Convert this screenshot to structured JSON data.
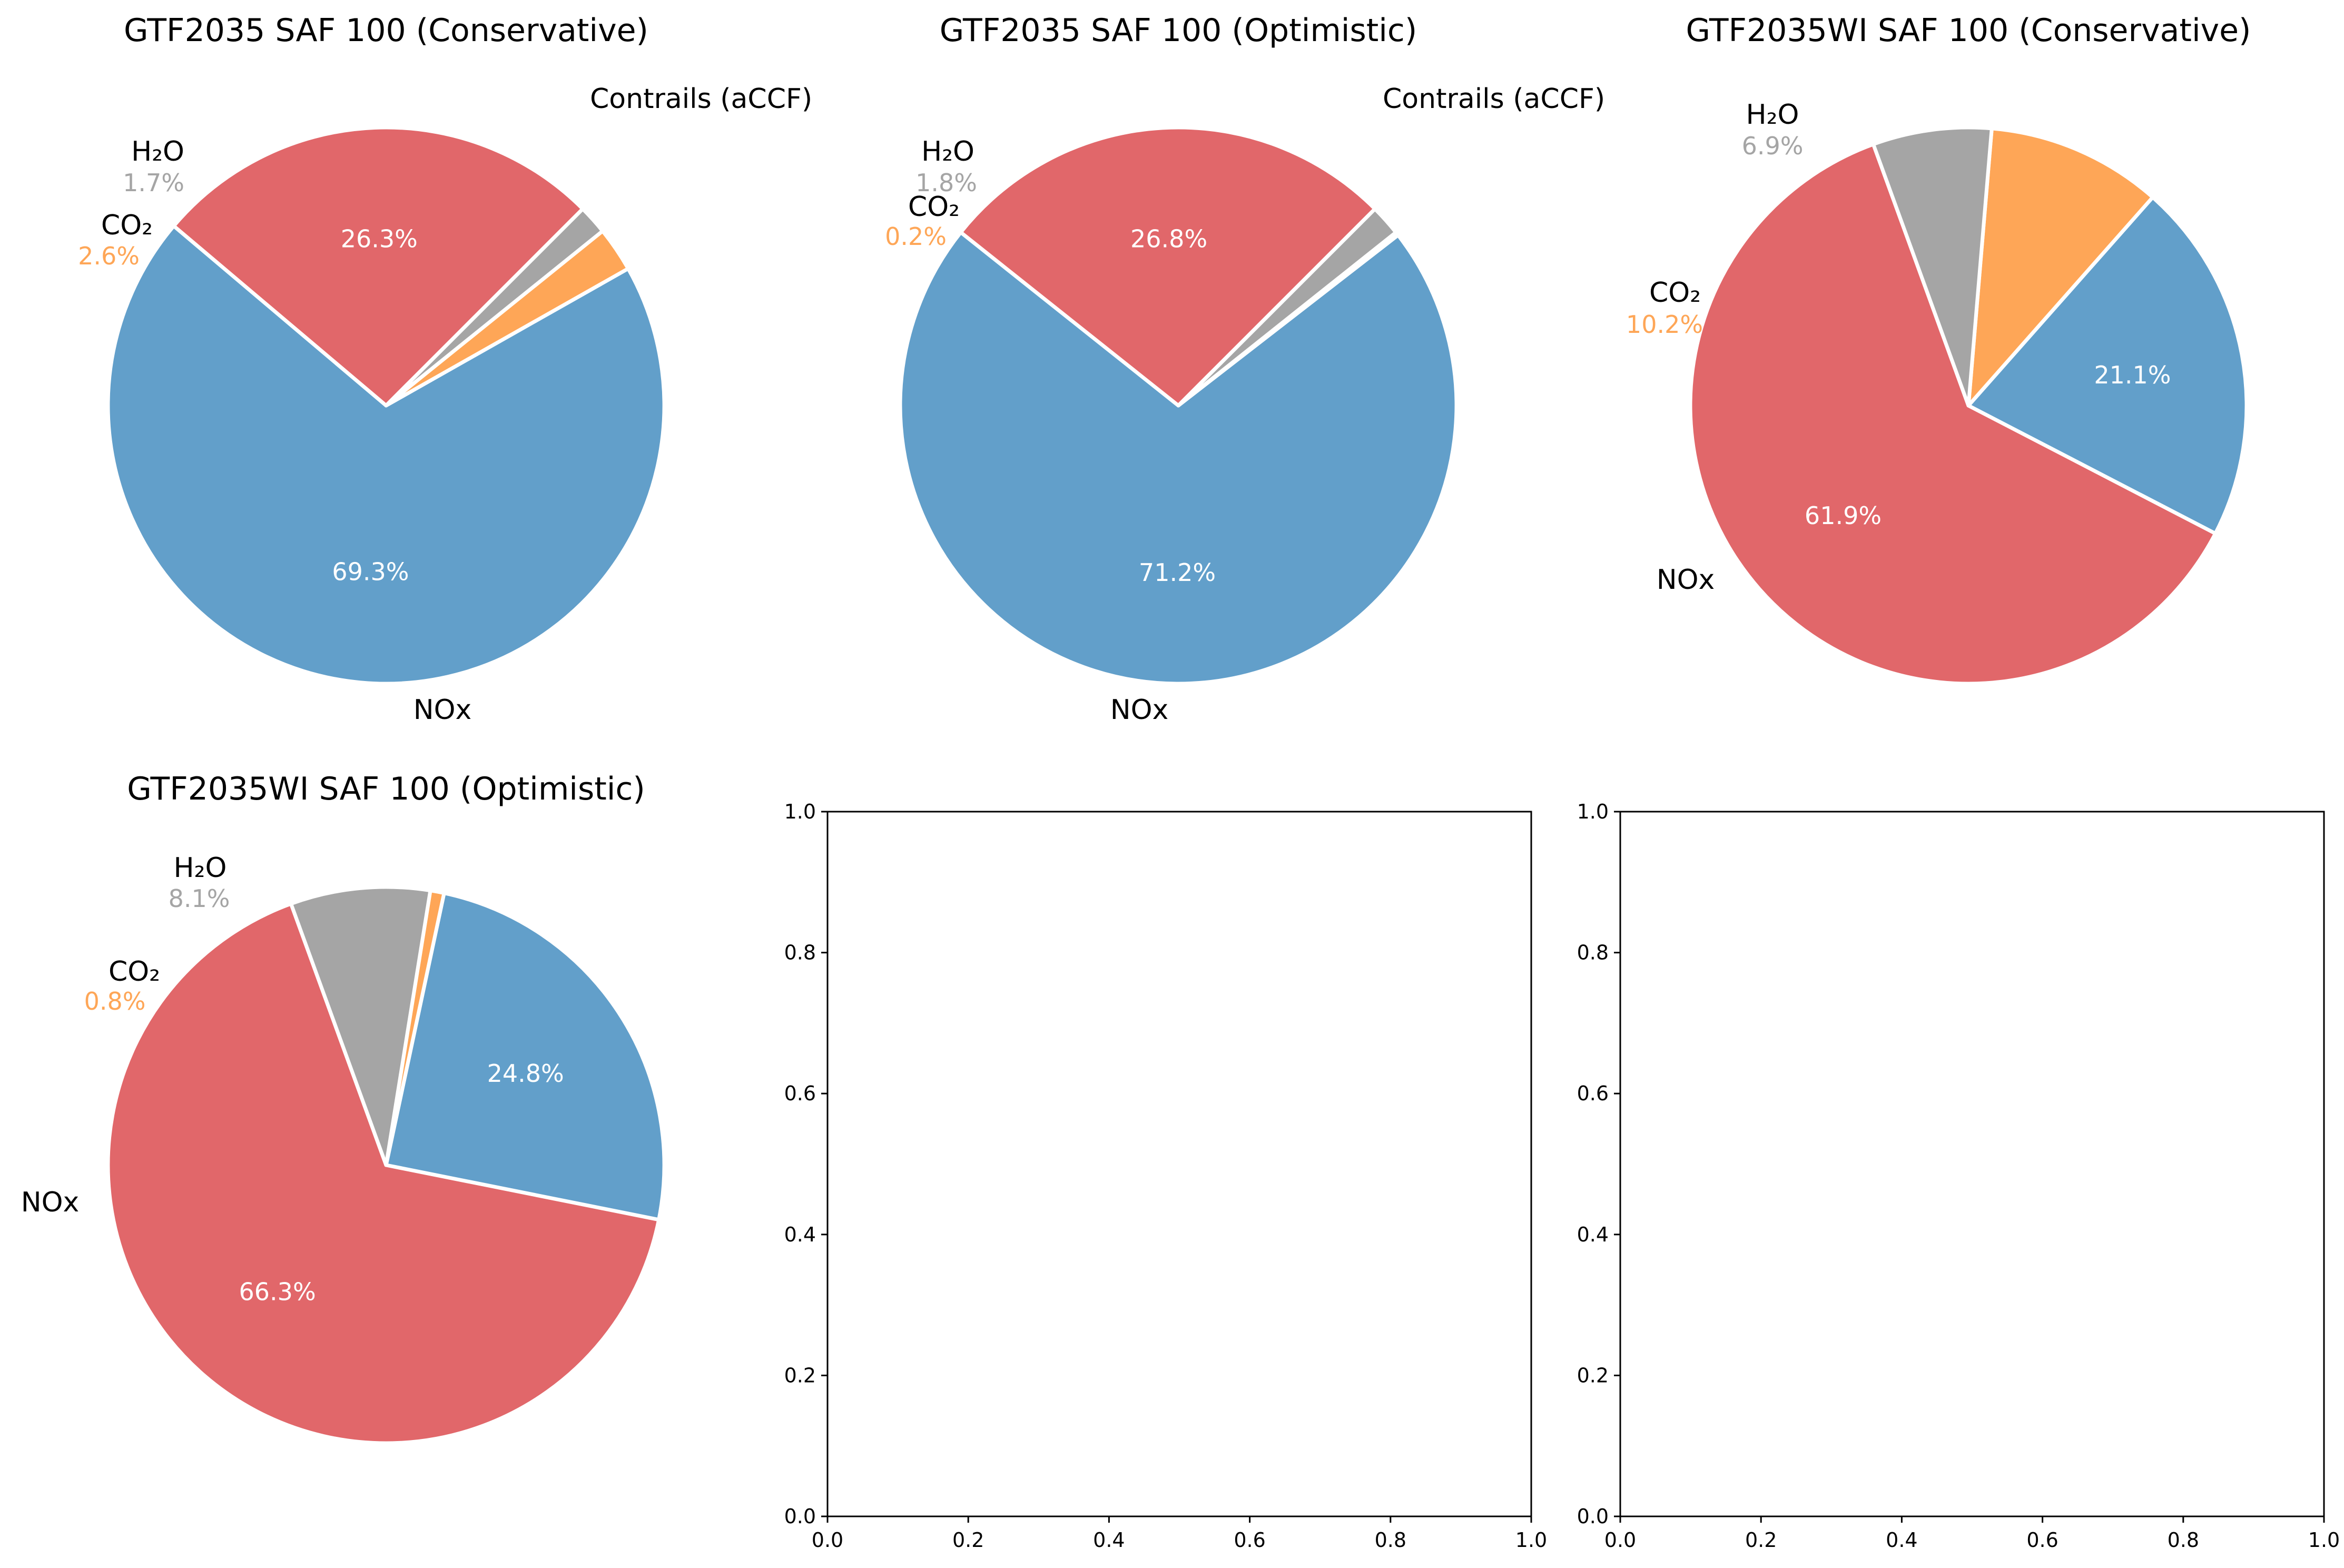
{
  "colors": {
    "NOx": "#629fca",
    "Contrails": "#e1676a",
    "CO2": "#fea657",
    "H2O": "#a5a5a5"
  },
  "chart_data": [
    {
      "type": "pie",
      "title": "GTF2035 SAF 100 (Conservative)",
      "slices": [
        {
          "key": "Contrails",
          "label": "Contrails (aCCF)",
          "value": 26.3,
          "pct_label": "26.3%"
        },
        {
          "key": "NOx",
          "label": "NOx",
          "value": 69.3,
          "pct_label": "69.3%"
        },
        {
          "key": "CO2",
          "label": "CO₂",
          "value": 2.6,
          "pct_label": "2.6%"
        },
        {
          "key": "H2O",
          "label": "H₂O",
          "value": 1.7,
          "pct_label": "1.7%"
        }
      ]
    },
    {
      "type": "pie",
      "title": "GTF2035 SAF 100 (Optimistic)",
      "slices": [
        {
          "key": "Contrails",
          "label": "Contrails (aCCF)",
          "value": 26.8,
          "pct_label": "26.8%"
        },
        {
          "key": "NOx",
          "label": "NOx",
          "value": 71.2,
          "pct_label": "71.2%"
        },
        {
          "key": "CO2",
          "label": "CO₂",
          "value": 0.2,
          "pct_label": "0.2%"
        },
        {
          "key": "H2O",
          "label": "H₂O",
          "value": 1.8,
          "pct_label": "1.8%"
        }
      ]
    },
    {
      "type": "pie",
      "title": "GTF2035WI SAF 100 (Conservative)",
      "slices": [
        {
          "key": "Contrails",
          "label": "",
          "value": 61.9,
          "pct_label": "61.9%"
        },
        {
          "key": "NOx",
          "label": "NOx",
          "value": 21.1,
          "pct_label": "21.1%"
        },
        {
          "key": "CO2",
          "label": "CO₂",
          "value": 10.2,
          "pct_label": "10.2%"
        },
        {
          "key": "H2O",
          "label": "H₂O",
          "value": 6.9,
          "pct_label": "6.9%"
        }
      ]
    },
    {
      "type": "pie",
      "title": "GTF2035WI SAF 100 (Optimistic)",
      "slices": [
        {
          "key": "Contrails",
          "label": "",
          "value": 66.3,
          "pct_label": "66.3%"
        },
        {
          "key": "NOx",
          "label": "NOx",
          "value": 24.8,
          "pct_label": "24.8%"
        },
        {
          "key": "CO2",
          "label": "CO₂",
          "value": 0.8,
          "pct_label": "0.8%"
        },
        {
          "key": "H2O",
          "label": "H₂O",
          "value": 8.1,
          "pct_label": "8.1%"
        }
      ]
    },
    {
      "type": "scatter",
      "title": "",
      "xlim": [
        0,
        1
      ],
      "ylim": [
        0,
        1
      ],
      "xticks": [
        "0.0",
        "0.2",
        "0.4",
        "0.6",
        "0.8",
        "1.0"
      ],
      "yticks": [
        "0.0",
        "0.2",
        "0.4",
        "0.6",
        "0.8",
        "1.0"
      ],
      "series": []
    },
    {
      "type": "scatter",
      "title": "",
      "xlim": [
        0,
        1
      ],
      "ylim": [
        0,
        1
      ],
      "xticks": [
        "0.0",
        "0.2",
        "0.4",
        "0.6",
        "0.8",
        "1.0"
      ],
      "yticks": [
        "0.0",
        "0.2",
        "0.4",
        "0.6",
        "0.8",
        "1.0"
      ],
      "series": []
    }
  ]
}
